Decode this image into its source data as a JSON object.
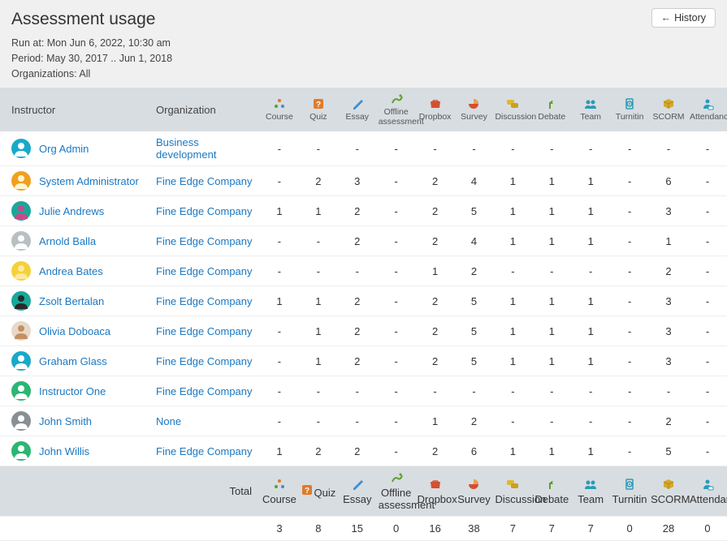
{
  "header": {
    "title": "Assessment usage",
    "run_at_label": "Run at: Mon Jun 6, 2022, 10:30 am",
    "period_label": "Period: May 30, 2017 .. Jun 1, 2018",
    "orgs_label": "Organizations: All",
    "history_btn": "History"
  },
  "columns": {
    "instructor": "Instructor",
    "organization": "Organization",
    "course": "Course",
    "quiz": "Quiz",
    "essay": "Essay",
    "offline": "Offline assessment",
    "dropbox": "Dropbox",
    "survey": "Survey",
    "discussion": "Discussion",
    "debate": "Debate",
    "team": "Team",
    "turnitin": "Turnitin",
    "scorm": "SCORM",
    "attendance": "Attendance"
  },
  "icon_colors": {
    "course": "#d67b28",
    "quiz": "#e07b2a",
    "essay": "#3a8fd6",
    "offline": "#5aa02c",
    "dropbox": "#d35030",
    "survey": "#d35030",
    "discussion": "#e0b82a",
    "debate": "#5aa02c",
    "team": "#2a9bb8",
    "turnitin": "#2a9bb8",
    "scorm": "#d6a828",
    "attendance": "#2a9bb8"
  },
  "rows": [
    {
      "name": "Org Admin",
      "org": "Business development",
      "avatar_bg": "#19a9c9",
      "avatar_fg": "#ffffff",
      "vals": [
        "-",
        "-",
        "-",
        "-",
        "-",
        "-",
        "-",
        "-",
        "-",
        "-",
        "-",
        "-"
      ]
    },
    {
      "name": "System Administrator",
      "org": "Fine Edge Company",
      "avatar_bg": "#f0a020",
      "avatar_fg": "#fff4d0",
      "vals": [
        "-",
        "2",
        "3",
        "-",
        "2",
        "4",
        "1",
        "1",
        "1",
        "-",
        "6",
        "-"
      ]
    },
    {
      "name": "Julie Andrews",
      "org": "Fine Edge Company",
      "avatar_bg": "#1aa79a",
      "avatar_fg": "#c74b8a",
      "vals": [
        "1",
        "1",
        "2",
        "-",
        "2",
        "5",
        "1",
        "1",
        "1",
        "-",
        "3",
        "-"
      ]
    },
    {
      "name": "Arnold Balla",
      "org": "Fine Edge Company",
      "avatar_bg": "#b8c0c4",
      "avatar_fg": "#ffffff",
      "vals": [
        "-",
        "-",
        "2",
        "-",
        "2",
        "4",
        "1",
        "1",
        "1",
        "-",
        "1",
        "-"
      ]
    },
    {
      "name": "Andrea Bates",
      "org": "Fine Edge Company",
      "avatar_bg": "#f3d13a",
      "avatar_fg": "#ffe8a0",
      "vals": [
        "-",
        "-",
        "-",
        "-",
        "1",
        "2",
        "-",
        "-",
        "-",
        "-",
        "2",
        "-"
      ]
    },
    {
      "name": "Zsolt Bertalan",
      "org": "Fine Edge Company",
      "avatar_bg": "#1aa79a",
      "avatar_fg": "#2a2a2a",
      "vals": [
        "1",
        "1",
        "2",
        "-",
        "2",
        "5",
        "1",
        "1",
        "1",
        "-",
        "3",
        "-"
      ]
    },
    {
      "name": "Olivia Doboaca",
      "org": "Fine Edge Company",
      "avatar_bg": "#e8d8c8",
      "avatar_fg": "#c49060",
      "vals": [
        "-",
        "1",
        "2",
        "-",
        "2",
        "5",
        "1",
        "1",
        "1",
        "-",
        "3",
        "-"
      ]
    },
    {
      "name": "Graham Glass",
      "org": "Fine Edge Company",
      "avatar_bg": "#19a9c9",
      "avatar_fg": "#ffffff",
      "vals": [
        "-",
        "1",
        "2",
        "-",
        "2",
        "5",
        "1",
        "1",
        "1",
        "-",
        "3",
        "-"
      ]
    },
    {
      "name": "Instructor One",
      "org": "Fine Edge Company",
      "avatar_bg": "#2bb673",
      "avatar_fg": "#ffffff",
      "vals": [
        "-",
        "-",
        "-",
        "-",
        "-",
        "-",
        "-",
        "-",
        "-",
        "-",
        "-",
        "-"
      ]
    },
    {
      "name": "John Smith",
      "org": "None",
      "avatar_bg": "#8a8f93",
      "avatar_fg": "#ffffff",
      "vals": [
        "-",
        "-",
        "-",
        "-",
        "1",
        "2",
        "-",
        "-",
        "-",
        "-",
        "2",
        "-"
      ]
    },
    {
      "name": "John Willis",
      "org": "Fine Edge Company",
      "avatar_bg": "#2bb673",
      "avatar_fg": "#ffffff",
      "vals": [
        "1",
        "2",
        "2",
        "-",
        "2",
        "6",
        "1",
        "1",
        "1",
        "-",
        "5",
        "-"
      ]
    }
  ],
  "total_label": "Total",
  "totals": [
    "3",
    "8",
    "15",
    "0",
    "16",
    "38",
    "7",
    "7",
    "7",
    "0",
    "28",
    "0"
  ]
}
